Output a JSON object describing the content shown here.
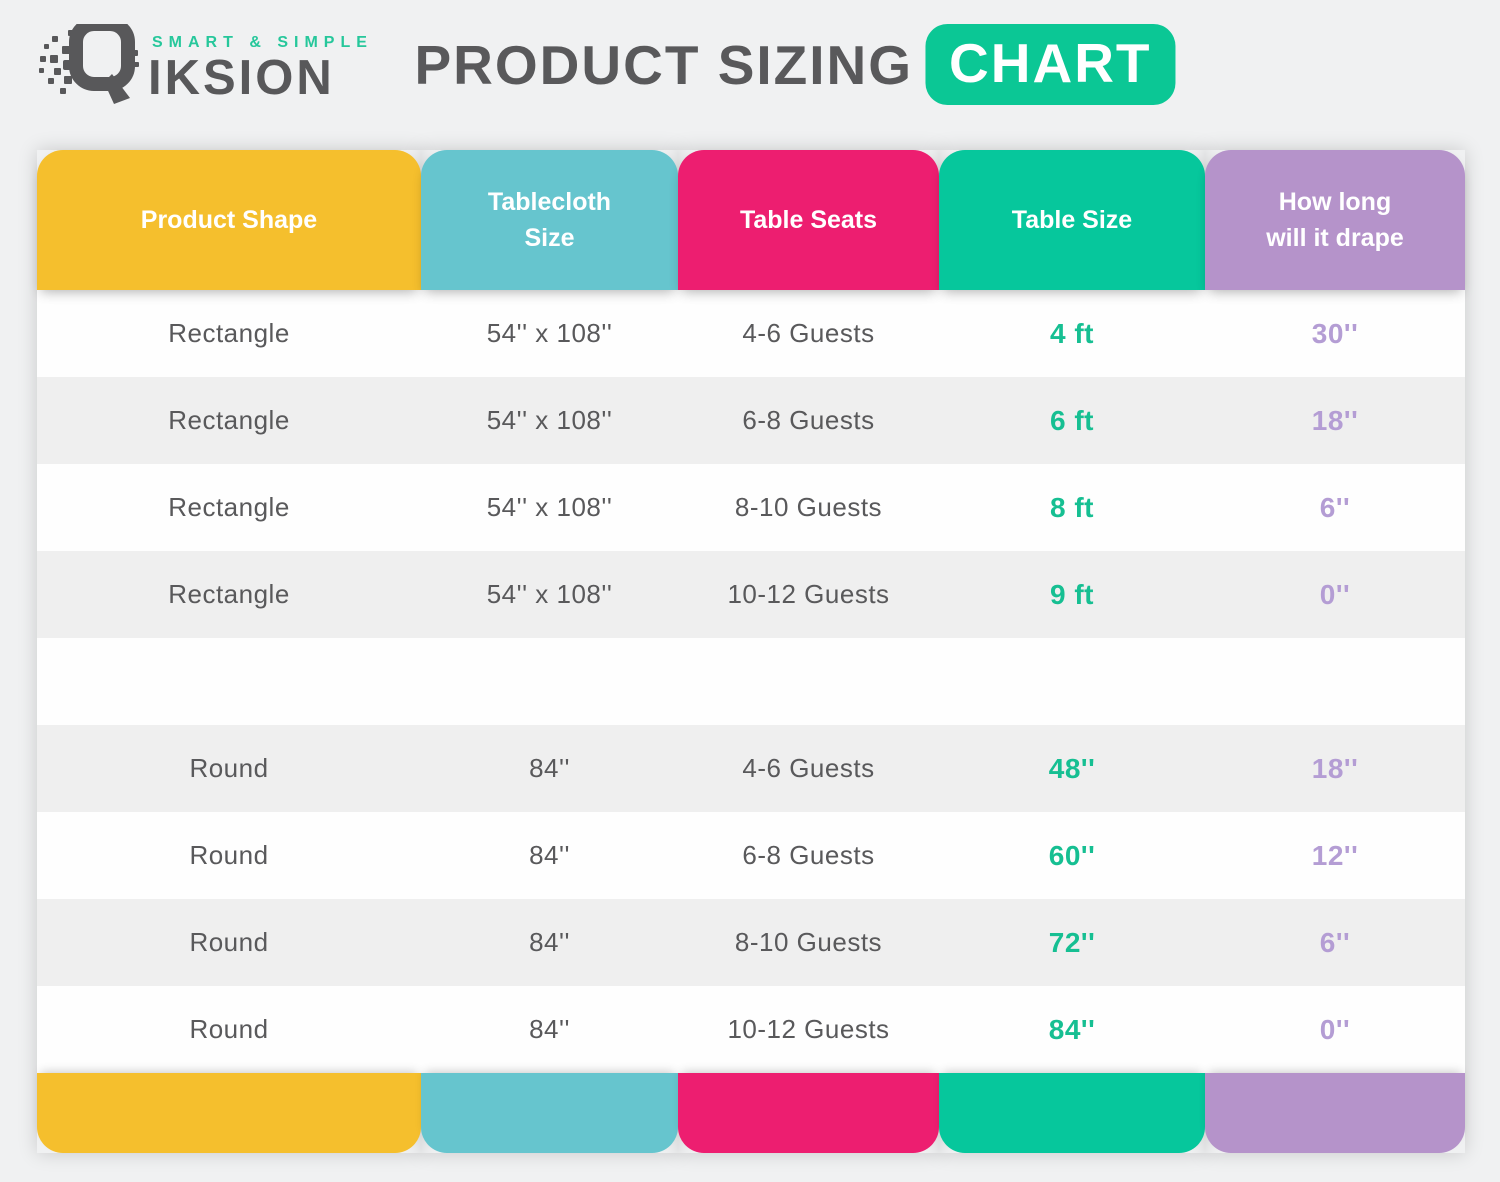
{
  "logo": {
    "tagline": "SMART & SIMPLE",
    "name": "IKSION",
    "mark": "q-speed-magnifier-icon"
  },
  "title": {
    "main": "PRODUCT SIZING",
    "highlight": "CHART"
  },
  "colors": {
    "title_chip": "#0bc795",
    "logo_accent": "#26c79b",
    "logo_text": "#58585a",
    "body_text": "#59595b",
    "table_size_value": "#16bf92",
    "drape_value": "#b49dd4",
    "row_white": "#fefefe",
    "row_gray": "#efefef",
    "page_background": "#f0f1f2"
  },
  "chart_data": {
    "type": "table",
    "title": "PRODUCT SIZING CHART",
    "legend_position": "none",
    "grid": "alternating-row-stripes",
    "columns": [
      "Product Shape",
      "Tablecloth\nSize",
      "Table Seats",
      "Table Size",
      "How long\nwill it drape"
    ],
    "column_colors": [
      "#f5bf2d",
      "#66c5ce",
      "#ed1e70",
      "#06c79c",
      "#b593ca"
    ],
    "rows": [
      [
        "Rectangle",
        "54'' x 108''",
        "4-6 Guests",
        "4 ft",
        "30''"
      ],
      [
        "Rectangle",
        "54'' x 108''",
        "6-8 Guests",
        "6 ft",
        "18''"
      ],
      [
        "Rectangle",
        "54'' x 108''",
        "8-10 Guests",
        "8 ft",
        "6''"
      ],
      [
        "Rectangle",
        "54'' x 108''",
        "10-12 Guests",
        "9 ft",
        "0''"
      ],
      [
        "",
        "",
        "",
        "",
        ""
      ],
      [
        "Round",
        "84''",
        "4-6 Guests",
        "48''",
        "18''"
      ],
      [
        "Round",
        "84''",
        "6-8 Guests",
        "60''",
        "12''"
      ],
      [
        "Round",
        "84''",
        "8-10 Guests",
        "72''",
        "6''"
      ],
      [
        "Round",
        "84''",
        "10-12 Guests",
        "84''",
        "0''"
      ]
    ]
  }
}
